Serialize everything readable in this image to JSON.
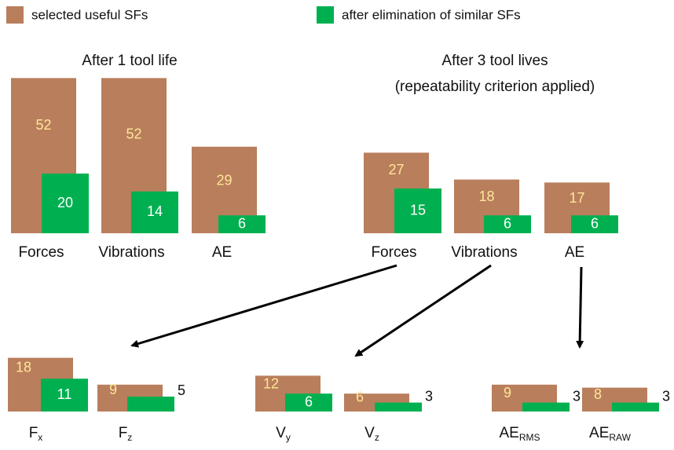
{
  "chart_data": [
    {
      "type": "bar",
      "title": "After 1 tool life",
      "categories": [
        "Forces",
        "Vibrations",
        "AE"
      ],
      "series": [
        {
          "name": "selected useful SFs",
          "color": "#b97e5c",
          "values": [
            52,
            52,
            29
          ]
        },
        {
          "name": "after elimination of similar SFs",
          "color": "#00b050",
          "values": [
            20,
            14,
            6
          ]
        }
      ]
    },
    {
      "type": "bar",
      "title": "After 3 tool lives",
      "subtitle": "(repeatability criterion applied)",
      "categories": [
        "Forces",
        "Vibrations",
        "AE"
      ],
      "series": [
        {
          "color": "#b97e5c",
          "values": [
            27,
            18,
            17
          ]
        },
        {
          "color": "#00b050",
          "values": [
            15,
            6,
            6
          ]
        }
      ]
    },
    {
      "type": "bar",
      "categories": [
        {
          "text": "F",
          "sub": "x"
        },
        {
          "text": "F",
          "sub": "z"
        },
        {
          "text": "V",
          "sub": "y"
        },
        {
          "text": "V",
          "sub": "z"
        },
        {
          "text": "AE",
          "sub": "RMS"
        },
        {
          "text": "AE",
          "sub": "RAW"
        }
      ],
      "series": [
        {
          "color": "#b97e5c",
          "values": [
            18,
            9,
            12,
            6,
            9,
            8
          ]
        },
        {
          "color": "#00b050",
          "values": [
            11,
            5,
            6,
            3,
            3,
            3
          ]
        }
      ]
    }
  ]
}
